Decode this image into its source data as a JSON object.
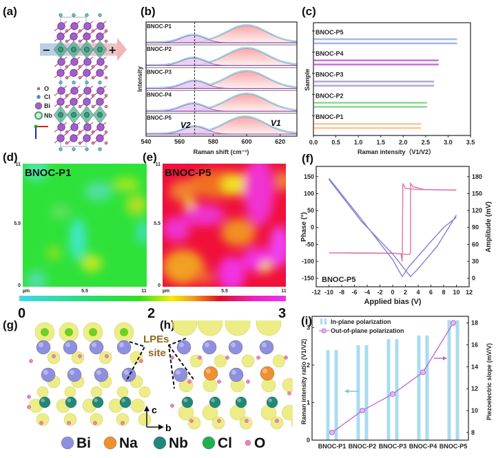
{
  "panel_labels": {
    "a": "(a)",
    "b": "(b)",
    "c": "(c)",
    "d": "(d)",
    "e": "(e)",
    "f": "(f)",
    "g": "(g)",
    "h": "(h)",
    "i": "(i)"
  },
  "panel_a": {
    "minus": "−",
    "plus": "+",
    "legend": [
      {
        "label": "O",
        "color": "#c07090"
      },
      {
        "label": "Cl",
        "color": "#4a9ab0"
      },
      {
        "label": "Bi",
        "color": "#a060c8"
      },
      {
        "label": "Nb",
        "color": "#40a070"
      }
    ]
  },
  "heatmaps": {
    "d": {
      "title": "BNOC-P1",
      "yticks": [
        "11",
        "5.5",
        "0"
      ],
      "xticks": [
        "µm",
        "5.5",
        "11"
      ]
    },
    "e": {
      "title": "BNOC-P5",
      "yticks": [
        "11",
        "5.5",
        "0"
      ],
      "xticks": [
        "µm",
        "5.5",
        "11"
      ]
    },
    "colorbar": {
      "labels": [
        "0",
        "2",
        "3"
      ],
      "range": [
        0,
        3
      ]
    }
  },
  "structures": {
    "annotation_line1": "LPEs",
    "annotation_line2": "site",
    "axis_c": "c",
    "axis_b": "b",
    "legend": [
      {
        "label": "Bi",
        "color": "#8f8fe0"
      },
      {
        "label": "Na",
        "color": "#f09030"
      },
      {
        "label": "Nb",
        "color": "#208878"
      },
      {
        "label": "Cl",
        "color": "#20b050"
      },
      {
        "label": "O",
        "color": "#f080c0"
      }
    ]
  },
  "chart_data": [
    {
      "panel": "b",
      "type": "area",
      "xlabel": "Raman shift (cm⁻¹)",
      "ylabel": "Intensity",
      "xlim": [
        540,
        630
      ],
      "xticks": [
        "540",
        "560",
        "580",
        "600",
        "620"
      ],
      "reference_line_x": 569,
      "peak_labels": {
        "v2": "V2",
        "v1": "V1"
      },
      "series": [
        {
          "name": "BNOC-P1",
          "v2_center": 568,
          "v1_center": 600
        },
        {
          "name": "BNOC-P2",
          "v2_center": 568,
          "v1_center": 600
        },
        {
          "name": "BNOC-P3",
          "v2_center": 569,
          "v1_center": 600
        },
        {
          "name": "BNOC-P4",
          "v2_center": 568,
          "v1_center": 600
        },
        {
          "name": "BNOC-P5",
          "v2_center": 569,
          "v1_center": 599
        }
      ]
    },
    {
      "panel": "c",
      "type": "bar",
      "orientation": "horizontal",
      "xlabel": "Raman intensity（V1/V2）",
      "ylabel": "Sample",
      "xlim": [
        0,
        3.5
      ],
      "xticks": [
        "0.0",
        "0.5",
        "1.0",
        "1.5",
        "2.0",
        "2.5",
        "3.0",
        "3.5"
      ],
      "categories": [
        "BNOC-P5",
        "BNOC-P4",
        "BNOC-P3",
        "BNOC-P2",
        "BNOC-P1"
      ],
      "values": [
        3.2,
        2.79,
        2.69,
        2.53,
        2.4
      ],
      "colors": [
        "#a8b8e0",
        "#d070d8",
        "#b8a8d0",
        "#90d890",
        "#f8c898"
      ]
    },
    {
      "panel": "f",
      "type": "line",
      "xlabel": "Applied bias (V)",
      "ylabel": "Phase (°)",
      "y2label": "Amplitude (mV)",
      "annotation": "BNOC-P5",
      "xlim": [
        -12,
        12
      ],
      "ylim": [
        -175,
        180
      ],
      "y2lim": [
        -15,
        198
      ],
      "xticks": [
        "-12",
        "-10",
        "-8",
        "-6",
        "-4",
        "-2",
        "0",
        "2",
        "4",
        "6",
        "8",
        "10",
        "12"
      ],
      "yticks": [
        "150",
        "100",
        "50",
        "0",
        "-50",
        "-100",
        "-150"
      ],
      "y2ticks": [
        "180",
        "150",
        "120",
        "90",
        "60",
        "30",
        "0"
      ],
      "series": [
        {
          "axis": "left",
          "color": "#e070b0",
          "branch": "forward",
          "points": [
            [
              -10,
              -75
            ],
            [
              0,
              -76
            ],
            [
              2.6,
              -80
            ],
            [
              2.8,
              -75
            ],
            [
              2.8,
              130
            ],
            [
              3.2,
              120
            ],
            [
              5,
              112
            ],
            [
              10,
              110
            ]
          ]
        },
        {
          "axis": "left",
          "color": "#e070b0",
          "branch": "reverse",
          "points": [
            [
              10,
              110
            ],
            [
              4,
              112
            ],
            [
              2,
              115
            ],
            [
              1.6,
              130
            ],
            [
              1.5,
              -100
            ],
            [
              1.3,
              -78
            ],
            [
              0,
              -76
            ],
            [
              -10,
              -75
            ]
          ]
        },
        {
          "axis": "right",
          "color": "#8080d0",
          "branch": "1",
          "points": [
            [
              -10,
              177
            ],
            [
              -5,
              106
            ],
            [
              0,
              33
            ],
            [
              1.5,
              3
            ],
            [
              2.5,
              20
            ],
            [
              6,
              65
            ],
            [
              8,
              90
            ],
            [
              10,
              108
            ]
          ]
        },
        {
          "axis": "right",
          "color": "#8080d0",
          "branch": "2",
          "points": [
            [
              -10,
              175
            ],
            [
              -5,
              102
            ],
            [
              0,
              43
            ],
            [
              2.8,
              3
            ],
            [
              4,
              17
            ],
            [
              7,
              57
            ],
            [
              10,
              112
            ]
          ]
        }
      ]
    },
    {
      "panel": "i",
      "type": "bar+line",
      "ylabel": "Raman intensity ratio (V1/V2)",
      "y2label": "Piezoelectric slope (mV/V)",
      "ylim": [
        0,
        3.3
      ],
      "y2lim": [
        7.3,
        18.6
      ],
      "yticks": [
        "0",
        "1",
        "2",
        "3"
      ],
      "y2ticks": [
        "8",
        "10",
        "12",
        "14",
        "16",
        "18"
      ],
      "categories": [
        "BNOC-P1",
        "BNOC-P2",
        "BNOC-P3",
        "BNOC-P4",
        "BNOC-P5"
      ],
      "series": [
        {
          "name": "In-plane polarization",
          "type": "bar",
          "axis": "left",
          "color": "#a8dcf0",
          "values": [
            2.4,
            2.53,
            2.69,
            2.79,
            3.2
          ]
        },
        {
          "name": "Out-of-plane polarization",
          "type": "line",
          "axis": "right",
          "color": "#c060d0",
          "values": [
            8,
            10,
            11.5,
            13.5,
            18
          ]
        }
      ]
    }
  ]
}
